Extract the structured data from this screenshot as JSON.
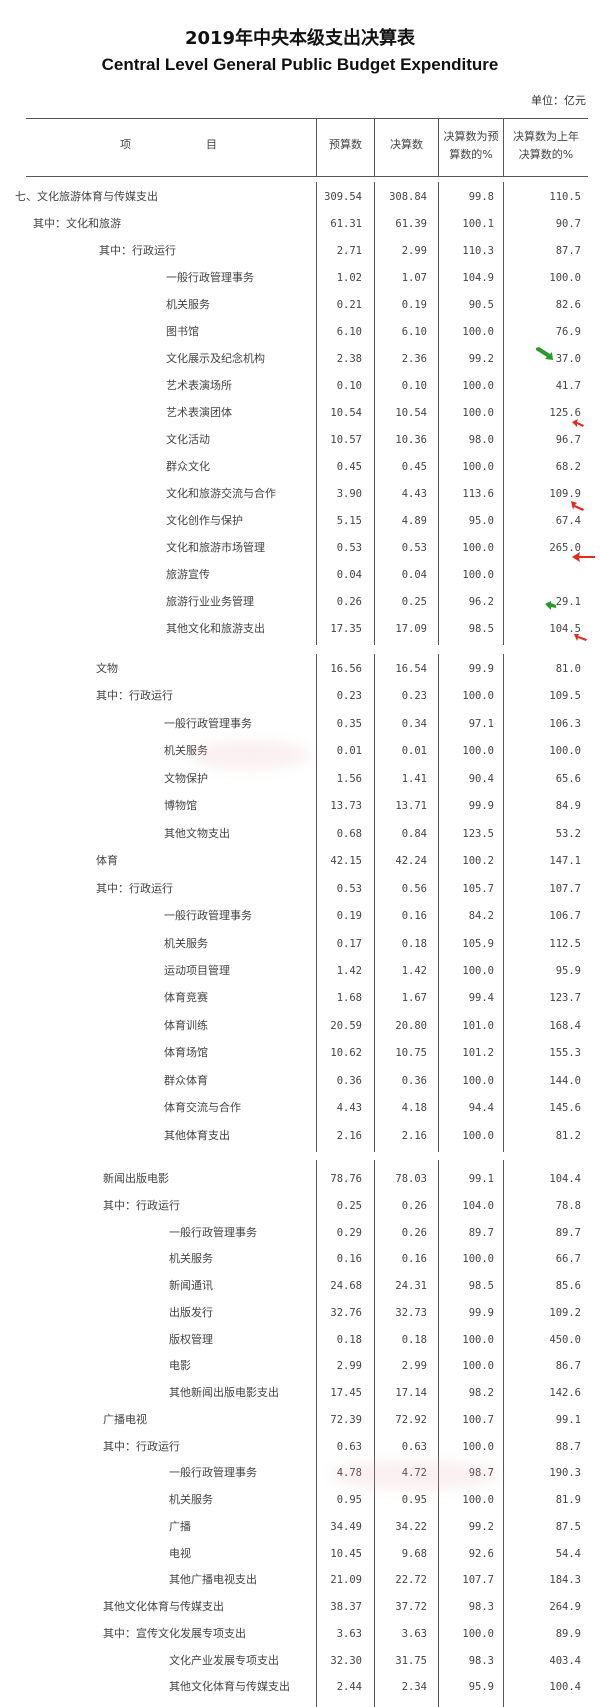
{
  "title_cn": "2019年中央本级支出决算表",
  "title_en": "Central Level General Public Budget Expenditure",
  "unit": "单位：亿元",
  "headers": {
    "item_1": "项",
    "item_2": "目",
    "budget": "预算数",
    "final": "决算数",
    "pct_budget": "决算数为预算数的%",
    "pct_prev": "决算数为上年决算数的%"
  },
  "colors": {
    "arrow_red": "#e8291c",
    "arrow_green": "#2a9a2a"
  },
  "blocks": [
    [
      [
        "七、文化旅游体育与传媒支出",
        0,
        "309.54",
        "308.84",
        "99.8",
        "110.5"
      ],
      [
        "其中：文化和旅游",
        1,
        "61.31",
        "61.39",
        "100.1",
        "90.7"
      ],
      [
        "其中：行政运行",
        2,
        "2.71",
        "2.99",
        "110.3",
        "87.7"
      ],
      [
        "一般行政管理事务",
        3,
        "1.02",
        "1.07",
        "104.9",
        "100.0"
      ],
      [
        "机关服务",
        3,
        "0.21",
        "0.19",
        "90.5",
        "82.6"
      ],
      [
        "图书馆",
        3,
        "6.10",
        "6.10",
        "100.0",
        "76.9"
      ],
      [
        "文化展示及纪念机构",
        3,
        "2.38",
        "2.36",
        "99.2",
        "37.0"
      ],
      [
        "艺术表演场所",
        3,
        "0.10",
        "0.10",
        "100.0",
        "41.7"
      ],
      [
        "艺术表演团体",
        3,
        "10.54",
        "10.54",
        "100.0",
        "125.6"
      ],
      [
        "文化活动",
        3,
        "10.57",
        "10.36",
        "98.0",
        "96.7"
      ],
      [
        "群众文化",
        3,
        "0.45",
        "0.45",
        "100.0",
        "68.2"
      ],
      [
        "文化和旅游交流与合作",
        3,
        "3.90",
        "4.43",
        "113.6",
        "109.9"
      ],
      [
        "文化创作与保护",
        3,
        "5.15",
        "4.89",
        "95.0",
        "67.4"
      ],
      [
        "文化和旅游市场管理",
        3,
        "0.53",
        "0.53",
        "100.0",
        "265.0"
      ],
      [
        "旅游宣传",
        3,
        "0.04",
        "0.04",
        "100.0",
        ""
      ],
      [
        "旅游行业业务管理",
        3,
        "0.26",
        "0.25",
        "96.2",
        "29.1"
      ],
      [
        "其他文化和旅游支出",
        3,
        "17.35",
        "17.09",
        "98.5",
        "104.5"
      ]
    ],
    [
      [
        "文物",
        2,
        "16.56",
        "16.54",
        "99.9",
        "81.0"
      ],
      [
        "其中：行政运行",
        2,
        "0.23",
        "0.23",
        "100.0",
        "109.5"
      ],
      [
        "一般行政管理事务",
        3,
        "0.35",
        "0.34",
        "97.1",
        "106.3"
      ],
      [
        "机关服务",
        3,
        "0.01",
        "0.01",
        "100.0",
        "100.0"
      ],
      [
        "文物保护",
        3,
        "1.56",
        "1.41",
        "90.4",
        "65.6"
      ],
      [
        "博物馆",
        3,
        "13.73",
        "13.71",
        "99.9",
        "84.9"
      ],
      [
        "其他文物支出",
        3,
        "0.68",
        "0.84",
        "123.5",
        "53.2"
      ],
      [
        "体育",
        2,
        "42.15",
        "42.24",
        "100.2",
        "147.1"
      ],
      [
        "其中：行政运行",
        2,
        "0.53",
        "0.56",
        "105.7",
        "107.7"
      ],
      [
        "一般行政管理事务",
        3,
        "0.19",
        "0.16",
        "84.2",
        "106.7"
      ],
      [
        "机关服务",
        3,
        "0.17",
        "0.18",
        "105.9",
        "112.5"
      ],
      [
        "运动项目管理",
        3,
        "1.42",
        "1.42",
        "100.0",
        "95.9"
      ],
      [
        "体育竞赛",
        3,
        "1.68",
        "1.67",
        "99.4",
        "123.7"
      ],
      [
        "体育训练",
        3,
        "20.59",
        "20.80",
        "101.0",
        "168.4"
      ],
      [
        "体育场馆",
        3,
        "10.62",
        "10.75",
        "101.2",
        "155.3"
      ],
      [
        "群众体育",
        3,
        "0.36",
        "0.36",
        "100.0",
        "144.0"
      ],
      [
        "体育交流与合作",
        3,
        "4.43",
        "4.18",
        "94.4",
        "145.6"
      ],
      [
        "其他体育支出",
        3,
        "2.16",
        "2.16",
        "100.0",
        "81.2"
      ]
    ],
    [
      [
        "新闻出版电影",
        2,
        "78.76",
        "78.03",
        "99.1",
        "104.4"
      ],
      [
        "其中：行政运行",
        2,
        "0.25",
        "0.26",
        "104.0",
        "78.8"
      ],
      [
        "一般行政管理事务",
        3,
        "0.29",
        "0.26",
        "89.7",
        "89.7"
      ],
      [
        "机关服务",
        3,
        "0.16",
        "0.16",
        "100.0",
        "66.7"
      ],
      [
        "新闻通讯",
        3,
        "24.68",
        "24.31",
        "98.5",
        "85.6"
      ],
      [
        "出版发行",
        3,
        "32.76",
        "32.73",
        "99.9",
        "109.2"
      ],
      [
        "版权管理",
        3,
        "0.18",
        "0.18",
        "100.0",
        "450.0"
      ],
      [
        "电影",
        3,
        "2.99",
        "2.99",
        "100.0",
        "86.7"
      ],
      [
        "其他新闻出版电影支出",
        3,
        "17.45",
        "17.14",
        "98.2",
        "142.6"
      ],
      [
        "广播电视",
        2,
        "72.39",
        "72.92",
        "100.7",
        "99.1"
      ],
      [
        "其中：行政运行",
        2,
        "0.63",
        "0.63",
        "100.0",
        "88.7"
      ],
      [
        "一般行政管理事务",
        3,
        "4.78",
        "4.72",
        "98.7",
        "190.3"
      ],
      [
        "机关服务",
        3,
        "0.95",
        "0.95",
        "100.0",
        "81.9"
      ],
      [
        "广播",
        3,
        "34.49",
        "34.22",
        "99.2",
        "87.5"
      ],
      [
        "电视",
        3,
        "10.45",
        "9.68",
        "92.6",
        "54.4"
      ],
      [
        "其他广播电视支出",
        3,
        "21.09",
        "22.72",
        "107.7",
        "184.3"
      ],
      [
        "其他文化体育与传媒支出",
        2,
        "38.37",
        "37.72",
        "98.3",
        "264.9"
      ],
      [
        "其中：宣传文化发展专项支出",
        2,
        "3.63",
        "3.63",
        "100.0",
        "89.9"
      ],
      [
        "文化产业发展专项支出",
        3,
        "32.30",
        "31.75",
        "98.3",
        "403.4"
      ],
      [
        "其他文化体育与传媒支出",
        3,
        "2.44",
        "2.34",
        "95.9",
        "100.4"
      ]
    ]
  ]
}
